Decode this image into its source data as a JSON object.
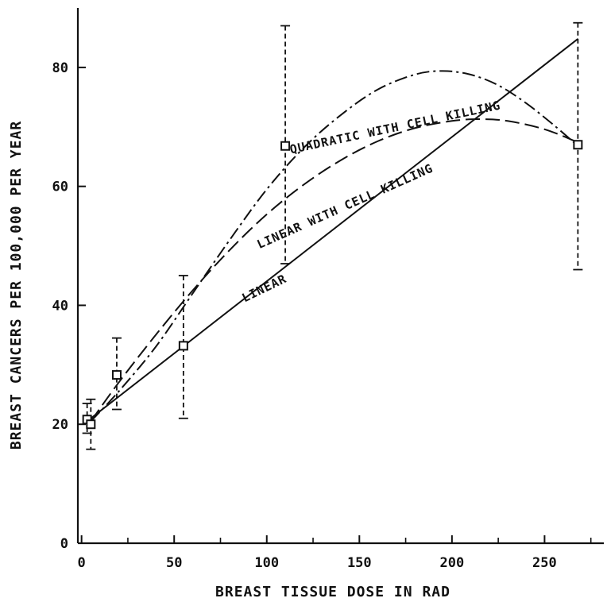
{
  "chart_data": {
    "type": "line",
    "xlabel": "BREAST TISSUE DOSE IN RAD",
    "ylabel": "BREAST CANCERS PER 100,000 PER YEAR",
    "xlim": [
      -2,
      282
    ],
    "ylim": [
      0,
      90
    ],
    "xticks": [
      0,
      50,
      100,
      150,
      200,
      250
    ],
    "yticks": [
      0,
      20,
      40,
      60,
      80
    ],
    "grid": false,
    "legend": "none",
    "data_points": [
      {
        "x": 3,
        "y": 20.8,
        "ylow": 18.5,
        "yhigh": 23.5
      },
      {
        "x": 5,
        "y": 20.0,
        "ylow": 15.8,
        "yhigh": 24.2
      },
      {
        "x": 19,
        "y": 28.3,
        "ylow": 22.5,
        "yhigh": 34.5
      },
      {
        "x": 55,
        "y": 33.2,
        "ylow": 21.0,
        "yhigh": 45.0
      },
      {
        "x": 110,
        "y": 66.8,
        "ylow": 47.0,
        "yhigh": 87.0
      },
      {
        "x": 268,
        "y": 67.0,
        "ylow": 46.0,
        "yhigh": 87.5
      }
    ],
    "series": [
      {
        "name": "LINEAR",
        "style": "solid",
        "x": [
          5,
          268
        ],
        "y": [
          21.0,
          84.8
        ]
      },
      {
        "name": "QUADRATIC WITH CELL KILLING",
        "style": "dash-dot",
        "x": [
          5,
          20,
          40,
          60,
          80,
          100,
          120,
          140,
          160,
          180,
          195,
          210,
          225,
          240,
          255,
          268
        ],
        "y": [
          20.5,
          25.5,
          33.0,
          42.0,
          51.0,
          59.5,
          66.5,
          72.0,
          76.3,
          78.8,
          79.4,
          78.8,
          77.0,
          74.0,
          70.3,
          66.8
        ]
      },
      {
        "name": "LINEAR WITH CELL KILLING",
        "style": "long-dash",
        "x": [
          5,
          20,
          40,
          60,
          80,
          100,
          120,
          140,
          160,
          180,
          200,
          215,
          230,
          250,
          268
        ],
        "y": [
          20.5,
          27.0,
          35.0,
          42.5,
          49.3,
          55.3,
          60.3,
          64.4,
          67.6,
          69.8,
          71.0,
          71.3,
          71.0,
          69.6,
          67.4
        ]
      }
    ],
    "annotations": [
      {
        "text": "LINEAR",
        "x": 88,
        "y": 40.5,
        "angle": -26
      },
      {
        "text": "QUADRATIC WITH CELL KILLING",
        "x": 113,
        "y": 65.5,
        "angle": -12
      },
      {
        "text": "LINEAR WITH CELL KILLING",
        "x": 96,
        "y": 49.5,
        "angle": -24
      }
    ],
    "colors": {
      "ink": "#111111",
      "background": "#ffffff"
    }
  }
}
